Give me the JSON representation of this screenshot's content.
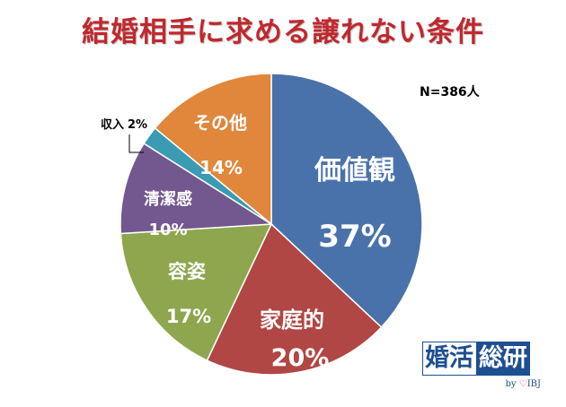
{
  "title": "結婚相手に求める譲れない条件",
  "sample_size": "N=386人",
  "chart_data": {
    "type": "pie",
    "title": "結婚相手に求める譲れない条件",
    "slices": [
      {
        "label": "価値観",
        "value": 37,
        "display": "37%",
        "color": "#4a72aa"
      },
      {
        "label": "家庭的",
        "value": 20,
        "display": "20%",
        "color": "#b04744"
      },
      {
        "label": "容姿",
        "value": 17,
        "display": "17%",
        "color": "#8ea64e"
      },
      {
        "label": "清潔感",
        "value": 10,
        "display": "10%",
        "color": "#73588f"
      },
      {
        "label": "収入",
        "value": 2,
        "display": "2%",
        "color": "#3a9bb2"
      },
      {
        "label": "その他",
        "value": 14,
        "display": "14%",
        "color": "#e0873b"
      }
    ]
  },
  "brand": {
    "part1": "婚活",
    "part2": "総研",
    "sub_by": "by",
    "sub_name": "IBJ"
  }
}
